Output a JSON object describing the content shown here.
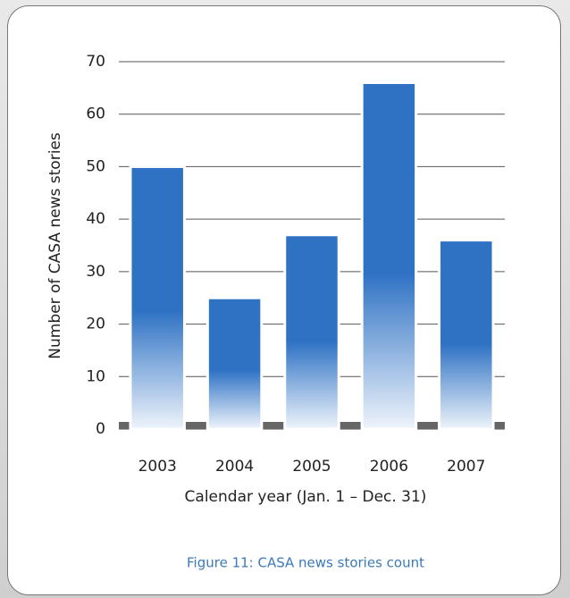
{
  "chart_data": {
    "type": "bar",
    "x_label": "Calendar year (Jan. 1 – Dec. 31)",
    "y_label": "Number of CASA news stories",
    "caption": "Figure 11: CASA news stories count",
    "categories": [
      "2003",
      "2004",
      "2005",
      "2006",
      "2007"
    ],
    "values": [
      50,
      25,
      37,
      66,
      36
    ],
    "color": "#2f72c4",
    "ylim": [
      0,
      70
    ],
    "yticks": [
      0,
      10,
      20,
      30,
      40,
      50,
      60,
      70
    ],
    "grid": true
  }
}
